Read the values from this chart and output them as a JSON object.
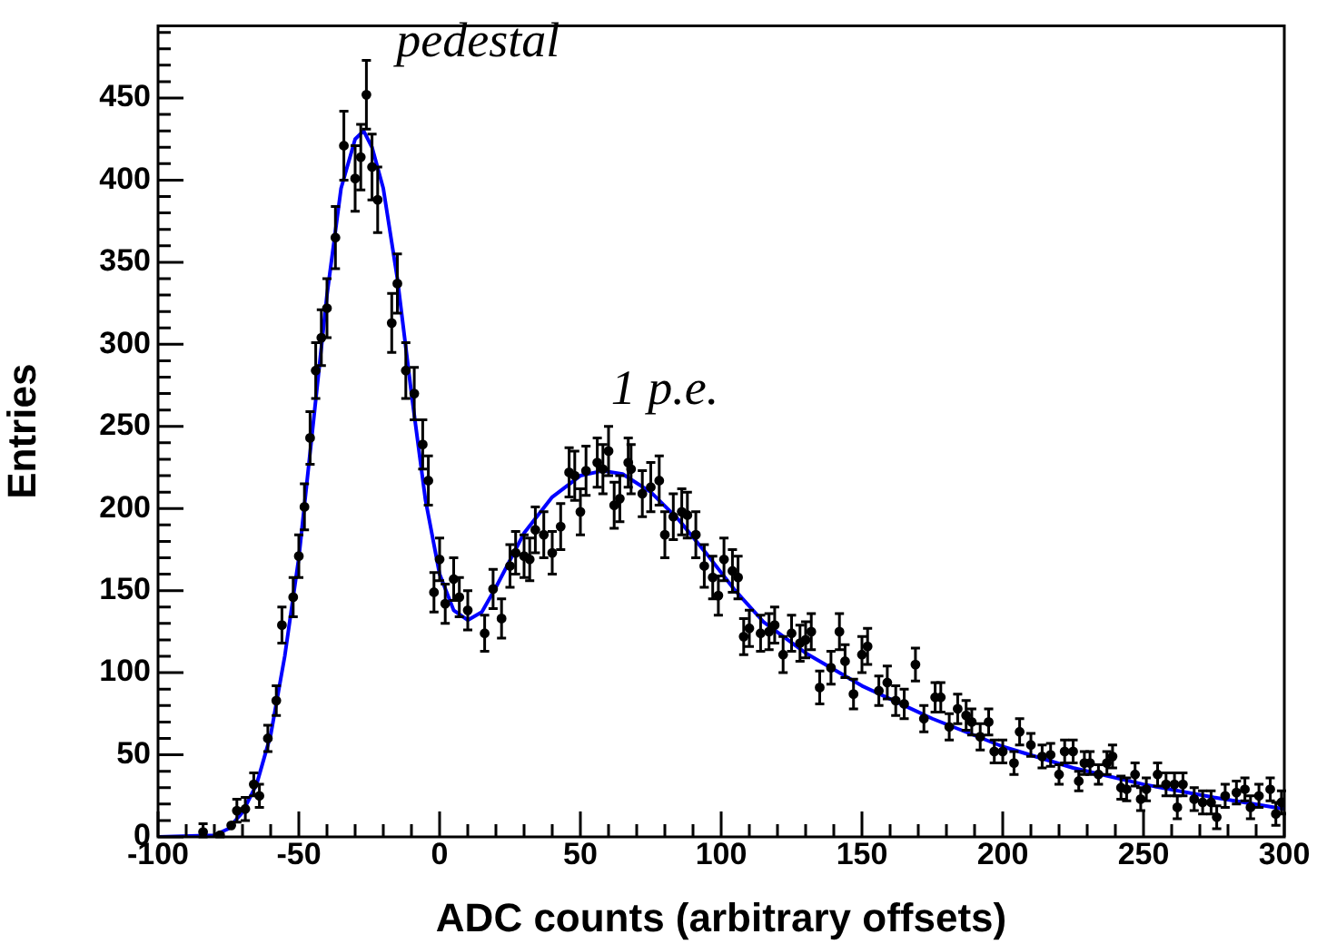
{
  "chart_data": {
    "type": "scatter",
    "xlabel": "ADC counts (arbitrary offsets)",
    "ylabel": "Entries",
    "xlim": [
      -100,
      300
    ],
    "ylim": [
      0,
      494
    ],
    "xticks": [
      -100,
      {
        "value": -90,
        "label": null
      },
      {
        "value": -80,
        "label": null
      },
      {
        "value": -70,
        "label": null
      },
      {
        "value": -60,
        "label": null
      },
      -50,
      {
        "value": -40,
        "label": null
      },
      {
        "value": -30,
        "label": null
      },
      {
        "value": -20,
        "label": null
      },
      {
        "value": -10,
        "label": null
      },
      0,
      {
        "value": 10,
        "label": null
      },
      {
        "value": 20,
        "label": null
      },
      {
        "value": 30,
        "label": null
      },
      {
        "value": 40,
        "label": null
      },
      50,
      {
        "value": 60,
        "label": null
      },
      {
        "value": 70,
        "label": null
      },
      {
        "value": 80,
        "label": null
      },
      {
        "value": 90,
        "label": null
      },
      100,
      {
        "value": 110,
        "label": null
      },
      {
        "value": 120,
        "label": null
      },
      {
        "value": 130,
        "label": null
      },
      {
        "value": 140,
        "label": null
      },
      150,
      {
        "value": 160,
        "label": null
      },
      {
        "value": 170,
        "label": null
      },
      {
        "value": 180,
        "label": null
      },
      {
        "value": 190,
        "label": null
      },
      200,
      {
        "value": 210,
        "label": null
      },
      {
        "value": 220,
        "label": null
      },
      {
        "value": 230,
        "label": null
      },
      {
        "value": 240,
        "label": null
      },
      250,
      {
        "value": 260,
        "label": null
      },
      {
        "value": 270,
        "label": null
      },
      {
        "value": 280,
        "label": null
      },
      {
        "value": 290,
        "label": null
      },
      300
    ],
    "yticks": [
      0,
      {
        "value": 10,
        "label": null
      },
      {
        "value": 20,
        "label": null
      },
      {
        "value": 30,
        "label": null
      },
      {
        "value": 40,
        "label": null
      },
      50,
      {
        "value": 60,
        "label": null
      },
      {
        "value": 70,
        "label": null
      },
      {
        "value": 80,
        "label": null
      },
      {
        "value": 90,
        "label": null
      },
      100,
      {
        "value": 110,
        "label": null
      },
      {
        "value": 120,
        "label": null
      },
      {
        "value": 130,
        "label": null
      },
      {
        "value": 140,
        "label": null
      },
      150,
      {
        "value": 160,
        "label": null
      },
      {
        "value": 170,
        "label": null
      },
      {
        "value": 180,
        "label": null
      },
      {
        "value": 190,
        "label": null
      },
      200,
      {
        "value": 210,
        "label": null
      },
      {
        "value": 220,
        "label": null
      },
      {
        "value": 230,
        "label": null
      },
      {
        "value": 240,
        "label": null
      },
      250,
      {
        "value": 260,
        "label": null
      },
      {
        "value": 270,
        "label": null
      },
      {
        "value": 280,
        "label": null
      },
      {
        "value": 290,
        "label": null
      },
      300,
      {
        "value": 310,
        "label": null
      },
      {
        "value": 320,
        "label": null
      },
      {
        "value": 330,
        "label": null
      },
      {
        "value": 340,
        "label": null
      },
      350,
      {
        "value": 360,
        "label": null
      },
      {
        "value": 370,
        "label": null
      },
      {
        "value": 380,
        "label": null
      },
      {
        "value": 390,
        "label": null
      },
      400,
      {
        "value": 410,
        "label": null
      },
      {
        "value": 420,
        "label": null
      },
      {
        "value": 430,
        "label": null
      },
      {
        "value": 440,
        "label": null
      },
      450,
      {
        "value": 460,
        "label": null
      },
      {
        "value": 470,
        "label": null
      },
      {
        "value": 480,
        "label": null
      },
      {
        "value": 490,
        "label": null
      }
    ],
    "grid": false,
    "legend": false,
    "annotations": [
      "pedestal",
      "1 p.e."
    ],
    "series": [
      {
        "type": "line",
        "color": "#0000ff",
        "marker": "none",
        "line_style": "solid",
        "x": [
          -100,
          -80,
          -75,
          -70,
          -65,
          -60,
          -55,
          -50,
          -45,
          -40,
          -35,
          -30,
          -27,
          -24,
          -20,
          -15,
          -10,
          -5,
          0,
          5,
          10,
          15,
          20,
          30,
          40,
          50,
          58,
          65,
          75,
          85,
          95,
          105,
          115,
          130,
          150,
          175,
          200,
          225,
          250,
          275,
          300
        ],
        "values": [
          0,
          1,
          5,
          15,
          32,
          62,
          110,
          170,
          250,
          330,
          395,
          425,
          430,
          420,
          395,
          340,
          270,
          205,
          160,
          138,
          132,
          137,
          152,
          185,
          207,
          220,
          223,
          221,
          210,
          193,
          172,
          150,
          131,
          112,
          92,
          72,
          55,
          42,
          32,
          24,
          17
        ]
      },
      {
        "color": "#000000",
        "x": [
          -84,
          -78,
          -74,
          -72,
          -69,
          -66,
          -64,
          -61,
          -58,
          -56,
          -52,
          -50,
          -48,
          -46,
          -44,
          -42,
          -40,
          -37,
          -34,
          -30,
          -28,
          -26,
          -24,
          -22,
          -17,
          -15,
          -12,
          -9,
          -6,
          -4,
          -2,
          0,
          2,
          5,
          7,
          10,
          16,
          19,
          22,
          25,
          27,
          30,
          32,
          34,
          37,
          40,
          43,
          46,
          48,
          50,
          52,
          56,
          58,
          60,
          62,
          64,
          67,
          68,
          72,
          75,
          78,
          80,
          83,
          86,
          88,
          91,
          94,
          97,
          99,
          101,
          104,
          106,
          108,
          110,
          114,
          117,
          119,
          122,
          125,
          128,
          130,
          132,
          135,
          139,
          142,
          144,
          147,
          150,
          152,
          156,
          159,
          162,
          165,
          169,
          172,
          176,
          178,
          181,
          184,
          187,
          189,
          192,
          195,
          197,
          200,
          204,
          206,
          210,
          214,
          217,
          220,
          222,
          225,
          227,
          229,
          231,
          234,
          237,
          239,
          242,
          244,
          247,
          249,
          251,
          255,
          258,
          261,
          262,
          264,
          268,
          271,
          274,
          276,
          279,
          283,
          286,
          288,
          291,
          295,
          297,
          299
        ],
        "values": [
          3,
          1,
          7,
          16,
          17,
          32,
          25,
          60,
          83,
          129,
          146,
          171,
          201,
          243,
          284,
          304,
          322,
          365,
          421,
          401,
          414,
          452,
          408,
          388,
          313,
          337,
          284,
          270,
          239,
          217,
          149,
          169,
          142,
          157,
          146,
          138,
          124,
          151,
          133,
          165,
          173,
          171,
          169,
          187,
          184,
          173,
          189,
          222,
          220,
          198,
          223,
          228,
          224,
          235,
          202,
          206,
          228,
          224,
          209,
          213,
          217,
          184,
          195,
          198,
          196,
          184,
          165,
          158,
          147,
          169,
          162,
          158,
          122,
          127,
          124,
          125,
          129,
          111,
          124,
          118,
          120,
          125,
          91,
          103,
          125,
          107,
          87,
          111,
          116,
          89,
          94,
          83,
          81,
          105,
          72,
          85,
          85,
          67,
          78,
          74,
          70,
          61,
          70,
          52,
          52,
          45,
          64,
          56,
          49,
          50,
          38,
          52,
          52,
          34,
          45,
          45,
          38,
          45,
          49,
          30,
          29,
          38,
          23,
          29,
          38,
          32,
          32,
          18,
          32,
          23,
          21,
          21,
          12,
          25,
          27,
          29,
          18,
          25,
          29,
          14,
          21
        ],
        "errors": [
          [
            0,
            8
          ],
          1,
          null,
          7,
          7,
          7,
          7,
          8,
          9,
          11,
          12,
          13,
          14,
          16,
          17,
          17,
          18,
          19,
          21,
          20,
          20,
          21,
          20,
          20,
          18,
          18,
          17,
          16,
          15,
          15,
          12,
          13,
          12,
          13,
          12,
          12,
          11,
          12,
          12,
          13,
          13,
          13,
          13,
          14,
          14,
          13,
          14,
          15,
          15,
          14,
          15,
          15,
          15,
          15,
          14,
          14,
          15,
          15,
          14,
          15,
          15,
          14,
          14,
          14,
          14,
          14,
          13,
          13,
          12,
          13,
          13,
          13,
          11,
          11,
          11,
          11,
          11,
          11,
          11,
          11,
          11,
          11,
          10,
          10,
          11,
          10,
          9,
          11,
          11,
          9,
          10,
          9,
          9,
          10,
          8,
          9,
          9,
          8,
          9,
          9,
          8,
          8,
          8,
          7,
          7,
          7,
          8,
          7,
          7,
          7,
          6,
          7,
          7,
          6,
          7,
          7,
          6,
          7,
          7,
          7,
          7,
          7,
          7,
          7,
          7,
          7,
          7,
          7,
          7,
          7,
          7,
          7,
          7,
          7,
          7,
          7,
          7,
          7,
          7,
          7,
          7
        ]
      }
    ]
  }
}
